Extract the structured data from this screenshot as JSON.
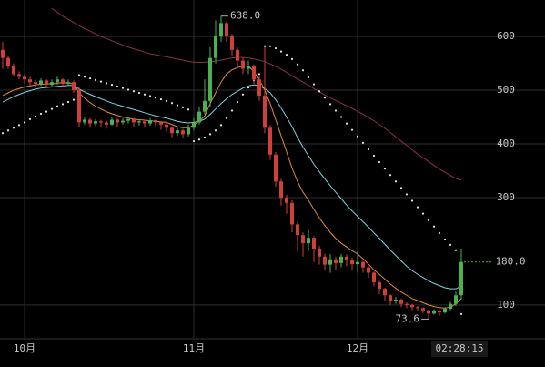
{
  "chart_data": {
    "type": "candlestick",
    "categories": [
      null,
      null,
      null,
      null,
      "10月",
      null,
      null,
      null,
      null,
      null,
      null,
      null,
      null,
      null,
      null,
      null,
      null,
      null,
      null,
      null,
      null,
      null,
      null,
      null,
      null,
      null,
      null,
      null,
      null,
      null,
      null,
      null,
      null,
      null,
      null,
      "11月",
      null,
      null,
      null,
      null,
      null,
      null,
      null,
      null,
      null,
      null,
      null,
      null,
      null,
      null,
      null,
      null,
      null,
      null,
      null,
      null,
      null,
      null,
      null,
      null,
      null,
      null,
      null,
      null,
      null,
      "12月",
      null,
      null,
      null,
      null,
      null,
      null,
      null,
      null,
      null,
      null,
      null,
      null,
      null,
      null,
      null,
      null,
      null,
      null,
      null
    ],
    "open": [
      575,
      560,
      545,
      530,
      525,
      520,
      515,
      512,
      518,
      510,
      515,
      520,
      512,
      515,
      500,
      440,
      445,
      438,
      442,
      440,
      436,
      445,
      440,
      443,
      446,
      440,
      442,
      438,
      444,
      440,
      436,
      430,
      420,
      425,
      418,
      430,
      440,
      460,
      480,
      560,
      600,
      625,
      600,
      575,
      555,
      540,
      545,
      520,
      490,
      430,
      380,
      330,
      300,
      290,
      250,
      230,
      215,
      225,
      205,
      190,
      175,
      185,
      178,
      190,
      183,
      176,
      180,
      170,
      160,
      142,
      130,
      118,
      108,
      110,
      102,
      100,
      96,
      94,
      90,
      84,
      88,
      86,
      93,
      102,
      118
    ],
    "high": [
      590,
      565,
      550,
      535,
      530,
      525,
      520,
      522,
      520,
      520,
      525,
      522,
      520,
      518,
      505,
      450,
      448,
      446,
      445,
      443,
      450,
      448,
      448,
      450,
      448,
      446,
      444,
      448,
      446,
      442,
      438,
      432,
      430,
      428,
      436,
      448,
      470,
      520,
      580,
      630,
      638,
      628,
      605,
      580,
      560,
      555,
      548,
      525,
      580,
      435,
      385,
      335,
      305,
      295,
      255,
      235,
      240,
      228,
      210,
      195,
      195,
      190,
      195,
      194,
      188,
      200,
      182,
      172,
      162,
      145,
      132,
      120,
      115,
      112,
      105,
      102,
      98,
      96,
      92,
      92,
      90,
      96,
      106,
      125,
      205
    ],
    "low": [
      540,
      540,
      525,
      520,
      512,
      508,
      505,
      508,
      505,
      506,
      510,
      505,
      508,
      495,
      432,
      436,
      430,
      434,
      432,
      428,
      434,
      432,
      436,
      438,
      432,
      434,
      430,
      434,
      432,
      426,
      422,
      412,
      415,
      410,
      414,
      425,
      436,
      455,
      470,
      550,
      590,
      590,
      565,
      545,
      530,
      530,
      512,
      480,
      420,
      370,
      320,
      285,
      270,
      235,
      200,
      190,
      200,
      180,
      175,
      165,
      160,
      165,
      170,
      172,
      165,
      160,
      160,
      150,
      135,
      120,
      108,
      100,
      102,
      96,
      94,
      90,
      88,
      85,
      73.6,
      82,
      80,
      84,
      90,
      98,
      110
    ],
    "close": [
      560,
      545,
      530,
      525,
      520,
      515,
      512,
      518,
      510,
      515,
      520,
      512,
      515,
      500,
      440,
      445,
      438,
      442,
      440,
      436,
      445,
      440,
      443,
      446,
      440,
      442,
      438,
      444,
      440,
      436,
      430,
      420,
      425,
      418,
      430,
      440,
      460,
      480,
      560,
      600,
      625,
      600,
      575,
      555,
      540,
      545,
      520,
      490,
      430,
      380,
      330,
      300,
      290,
      250,
      230,
      215,
      225,
      205,
      190,
      175,
      185,
      178,
      190,
      183,
      176,
      180,
      170,
      160,
      142,
      130,
      118,
      108,
      110,
      102,
      100,
      96,
      94,
      90,
      84,
      88,
      86,
      93,
      102,
      118,
      180
    ],
    "up_color": "#4caf50",
    "down_color": "#d0403a",
    "lines": [
      {
        "color": "#e08a3c",
        "values": [
          490,
          495,
          500,
          503,
          506,
          508,
          510,
          511,
          512,
          512,
          513,
          514,
          513,
          512,
          495,
          485,
          477,
          470,
          465,
          460,
          456,
          453,
          450,
          448,
          446,
          445,
          444,
          443,
          442,
          441,
          440,
          436,
          432,
          430,
          430,
          435,
          442,
          452,
          475,
          495,
          515,
          530,
          538,
          542,
          545,
          545,
          535,
          520,
          500,
          475,
          445,
          415,
          385,
          355,
          330,
          310,
          295,
          278,
          262,
          248,
          235,
          224,
          215,
          208,
          201,
          195,
          186,
          176,
          165,
          157,
          148,
          139,
          131,
          124,
          118,
          112,
          108,
          104,
          100,
          97,
          95,
          94,
          96,
          102,
          112
        ]
      },
      {
        "color": "#7fd3e0",
        "values": [
          478,
          483,
          488,
          492,
          496,
          499,
          502,
          504,
          505,
          506,
          507,
          508,
          509,
          509,
          502,
          497,
          492,
          488,
          484,
          480,
          476,
          473,
          470,
          467,
          464,
          461,
          458,
          455,
          452,
          450,
          448,
          445,
          442,
          440,
          439,
          440,
          442,
          446,
          455,
          465,
          475,
          484,
          492,
          498,
          504,
          508,
          510,
          508,
          503,
          495,
          482,
          467,
          450,
          432,
          412,
          394,
          378,
          362,
          348,
          335,
          322,
          310,
          298,
          286,
          275,
          265,
          255,
          245,
          234,
          224,
          213,
          202,
          192,
          182,
          172,
          164,
          157,
          151,
          145,
          140,
          136,
          132,
          130,
          130,
          135
        ]
      },
      {
        "color": "#8a3440",
        "values": [
          null,
          null,
          null,
          null,
          null,
          null,
          null,
          null,
          null,
          652,
          645,
          638,
          632,
          626,
          620,
          615,
          610,
          605,
          600,
          596,
          592,
          588,
          584,
          580,
          577,
          574,
          571,
          568,
          566,
          564,
          562,
          560,
          558,
          556,
          554,
          552,
          552,
          552,
          553,
          554,
          556,
          558,
          560,
          561,
          561,
          560,
          558,
          556,
          553,
          549,
          544,
          539,
          533,
          527,
          521,
          515,
          509,
          503,
          497,
          491,
          486,
          481,
          476,
          471,
          466,
          461,
          455,
          449,
          443,
          436,
          429,
          421,
          413,
          405,
          397,
          389,
          381,
          374,
          367,
          360,
          353,
          347,
          341,
          336,
          332
        ]
      }
    ],
    "sar": {
      "color": "#e6e6e6",
      "values": [
        420,
        425,
        430,
        435,
        440,
        446,
        451,
        456,
        460,
        465,
        470,
        474,
        478,
        482,
        528,
        525,
        522,
        519,
        516,
        513,
        510,
        507,
        504,
        501,
        498,
        495,
        492,
        489,
        486,
        483,
        480,
        476,
        472,
        468,
        464,
        405,
        408,
        412,
        418,
        425,
        435,
        448,
        462,
        478,
        492,
        505,
        518,
        530,
        582,
        582,
        578,
        572,
        566,
        558,
        548,
        537,
        524,
        511,
        498,
        486,
        474,
        462,
        450,
        438,
        426,
        414,
        402,
        390,
        378,
        366,
        354,
        342,
        330,
        318,
        306,
        294,
        282,
        270,
        258,
        246,
        234,
        222,
        212,
        202,
        83
      ]
    },
    "ylim": [
      37,
      668
    ],
    "yticks": [
      100,
      300,
      400,
      500,
      600
    ],
    "grid": true,
    "high_label": {
      "index": 40,
      "value": 638,
      "label": "638.0"
    },
    "low_label": {
      "index": 78,
      "value": 73.6,
      "label": "73.6"
    },
    "last_price": {
      "value": 180,
      "label": "180.0",
      "color": "#4caf50"
    },
    "time": "02:28:15"
  }
}
